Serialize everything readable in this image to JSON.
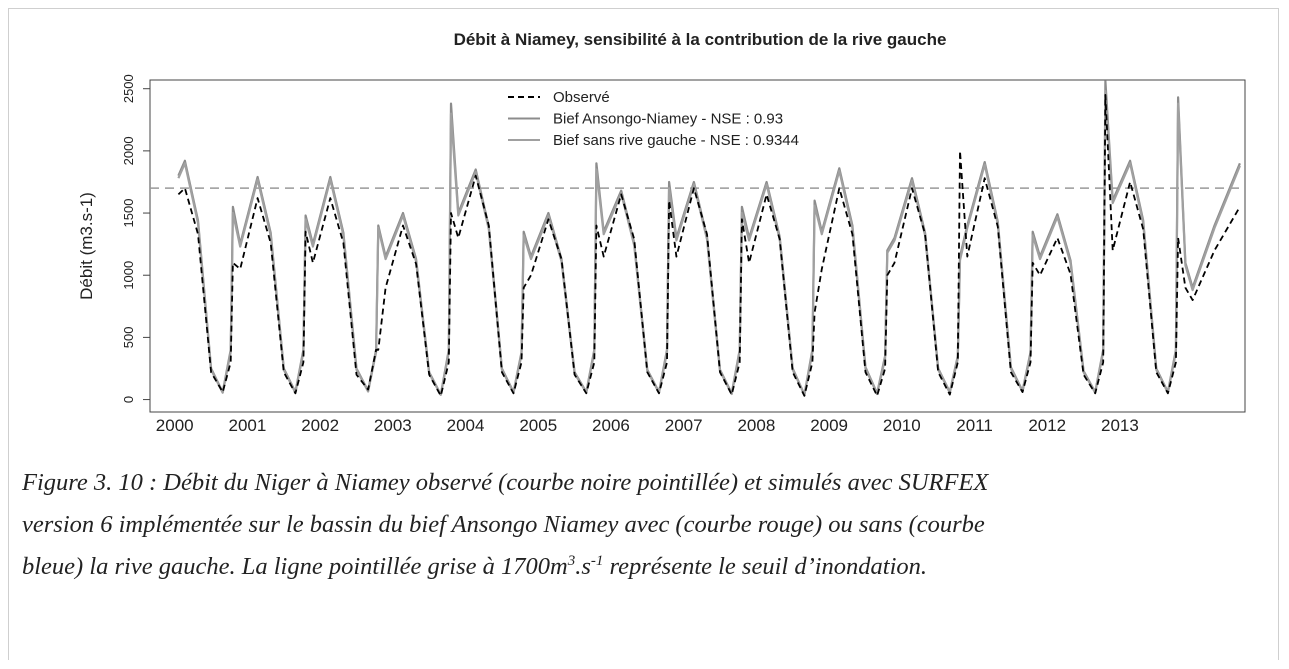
{
  "chart_data": {
    "type": "line",
    "title": "Débit à Niamey, sensibilité à la contribution de la rive gauche",
    "ylabel": "Débit (m3.s-1)",
    "xlim": [
      1999.66,
      2014.72
    ],
    "ylim": [
      -100,
      2570
    ],
    "xticks": [
      2000,
      2001,
      2002,
      2003,
      2004,
      2005,
      2006,
      2007,
      2008,
      2009,
      2010,
      2011,
      2012,
      2013
    ],
    "yticks": [
      0,
      500,
      1000,
      1500,
      2000,
      2500
    ],
    "threshold": 1700,
    "threshold_color": "#999999",
    "x": [
      2000.05,
      2000.14,
      2000.32,
      2000.5,
      2000.66,
      2000.77,
      2000.8,
      2000.9,
      2001.14,
      2001.32,
      2001.5,
      2001.66,
      2001.77,
      2001.8,
      2001.9,
      2002.14,
      2002.32,
      2002.5,
      2002.66,
      2002.77,
      2002.8,
      2002.9,
      2003.14,
      2003.32,
      2003.5,
      2003.66,
      2003.77,
      2003.8,
      2003.9,
      2004.14,
      2004.32,
      2004.5,
      2004.66,
      2004.77,
      2004.8,
      2004.9,
      2005.14,
      2005.32,
      2005.5,
      2005.66,
      2005.77,
      2005.8,
      2005.9,
      2006.14,
      2006.32,
      2006.5,
      2006.66,
      2006.77,
      2006.8,
      2006.9,
      2007.14,
      2007.32,
      2007.5,
      2007.66,
      2007.77,
      2007.8,
      2007.9,
      2008.14,
      2008.32,
      2008.5,
      2008.66,
      2008.77,
      2008.8,
      2008.9,
      2009.14,
      2009.32,
      2009.5,
      2009.66,
      2009.77,
      2009.8,
      2009.9,
      2010.14,
      2010.32,
      2010.5,
      2010.66,
      2010.77,
      2010.8,
      2010.9,
      2011.14,
      2011.32,
      2011.5,
      2011.66,
      2011.77,
      2011.8,
      2011.9,
      2012.14,
      2012.32,
      2012.5,
      2012.66,
      2012.77,
      2012.8,
      2012.9,
      2013.14,
      2013.32,
      2013.5,
      2013.66,
      2013.77,
      2013.8,
      2013.9,
      2014.0,
      2014.3,
      2014.65
    ],
    "series": [
      {
        "name": "Observé",
        "color": "#000000",
        "dashed": true,
        "values": [
          1650,
          1700,
          1330,
          220,
          60,
          300,
          1100,
          1050,
          1620,
          1260,
          220,
          50,
          300,
          1350,
          1100,
          1620,
          1260,
          200,
          80,
          400,
          400,
          900,
          1400,
          1090,
          200,
          30,
          300,
          1500,
          1300,
          1800,
          1400,
          220,
          50,
          300,
          900,
          1000,
          1450,
          1130,
          200,
          50,
          300,
          1400,
          1150,
          1650,
          1290,
          220,
          50,
          300,
          1600,
          1150,
          1700,
          1330,
          220,
          40,
          300,
          1450,
          1100,
          1650,
          1290,
          220,
          30,
          300,
          700,
          1050,
          1700,
          1330,
          220,
          30,
          250,
          1000,
          1100,
          1700,
          1330,
          220,
          40,
          300,
          2000,
          1150,
          1780,
          1390,
          220,
          60,
          300,
          1100,
          1000,
          1300,
          1010,
          200,
          50,
          300,
          2450,
          1200,
          1750,
          1370,
          220,
          50,
          300,
          1300,
          900,
          800,
          1200,
          1550
        ]
      },
      {
        "name": "Bief Ansongo-Niamey - NSE : 0.93",
        "color": "#8c8c8c",
        "dashed": false,
        "values": [
          1800,
          1920,
          1440,
          250,
          60,
          400,
          1550,
          1250,
          1790,
          1340,
          250,
          60,
          400,
          1480,
          1250,
          1790,
          1340,
          250,
          70,
          400,
          1400,
          1150,
          1500,
          1130,
          220,
          40,
          400,
          2380,
          1500,
          1850,
          1390,
          250,
          60,
          380,
          1350,
          1150,
          1500,
          1130,
          220,
          60,
          400,
          1900,
          1350,
          1680,
          1260,
          240,
          60,
          400,
          1750,
          1300,
          1750,
          1310,
          240,
          50,
          400,
          1550,
          1300,
          1750,
          1310,
          250,
          40,
          400,
          1600,
          1350,
          1860,
          1400,
          260,
          50,
          350,
          1200,
          1300,
          1780,
          1340,
          250,
          60,
          350,
          1150,
          1400,
          1910,
          1430,
          260,
          70,
          380,
          1350,
          1150,
          1490,
          1120,
          230,
          60,
          400,
          2560,
          1600,
          1920,
          1440,
          250,
          60,
          400,
          2430,
          1100,
          900,
          1400,
          1900
        ]
      },
      {
        "name": "Bief sans rive gauche - NSE : 0.9344",
        "color": "#a0a0a0",
        "dashed": false,
        "values": [
          1780,
          1900,
          1420,
          240,
          55,
          380,
          1500,
          1230,
          1770,
          1320,
          240,
          55,
          380,
          1450,
          1230,
          1770,
          1320,
          240,
          65,
          380,
          1380,
          1130,
          1480,
          1110,
          210,
          38,
          380,
          2300,
          1480,
          1830,
          1370,
          240,
          55,
          360,
          1320,
          1130,
          1480,
          1110,
          210,
          55,
          380,
          1850,
          1330,
          1660,
          1240,
          230,
          55,
          380,
          1700,
          1280,
          1730,
          1290,
          230,
          45,
          380,
          1500,
          1280,
          1730,
          1290,
          240,
          38,
          380,
          1560,
          1330,
          1840,
          1380,
          250,
          45,
          330,
          1180,
          1280,
          1760,
          1320,
          240,
          55,
          330,
          1120,
          1380,
          1890,
          1410,
          250,
          65,
          360,
          1320,
          1130,
          1470,
          1100,
          220,
          55,
          380,
          2480,
          1580,
          1900,
          1420,
          240,
          55,
          380,
          2380,
          1080,
          880,
          1380,
          1880
        ]
      }
    ]
  },
  "caption": {
    "lines": [
      "Figure 3. 10 : Débit du Niger à Niamey observé (courbe noire pointillée) et simulés avec SURFEX",
      "version 6 implémentée sur le bassin du bief Ansongo Niamey avec (courbe rouge) ou sans (courbe"
    ],
    "last": [
      "bleue) la rive gauche. La ligne pointillée grise à 1700m",
      "3",
      ".s",
      "-1",
      " représente le seuil d’inondation."
    ]
  }
}
